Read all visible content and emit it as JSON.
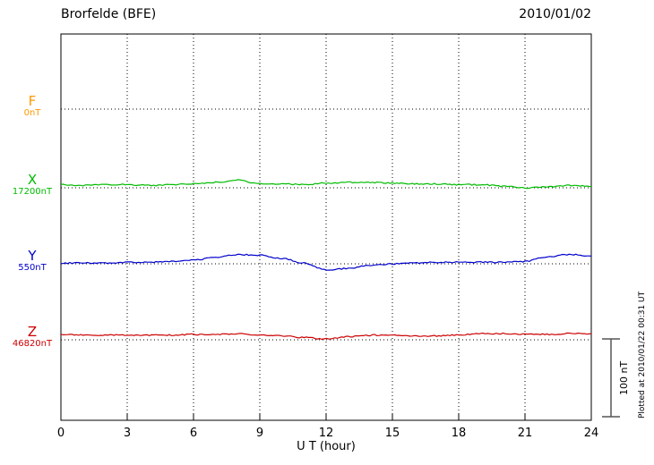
{
  "header": {
    "title": "Brorfelde (BFE)",
    "date": "2010/01/02"
  },
  "footer": {
    "plotted_note": "Plotted at 2010/01/22 00:31 UT"
  },
  "chart_data": {
    "type": "line",
    "title": "Brorfelde (BFE)",
    "date": "2010/01/02",
    "xlabel": "U T (hour)",
    "xlim": [
      0,
      24
    ],
    "x_ticks": [
      0,
      3,
      6,
      9,
      12,
      15,
      18,
      21,
      24
    ],
    "x_step_hours": 1,
    "x_unit": "hour",
    "y_unit": "nT",
    "grid": "dotted vertical lines every 3 h; dotted horizontal line at each channel baseline",
    "scale_bar": {
      "label": "100 nT",
      "nT": 100
    },
    "series": [
      {
        "name": "F",
        "baseline_label": "0nT",
        "color": "#ff9900",
        "values_deviation_nT": []
      },
      {
        "name": "X",
        "baseline_label": "17200nT",
        "color": "#00bb00",
        "values_deviation_nT": [
          4,
          3,
          4,
          4,
          3,
          4,
          5,
          7,
          10,
          5,
          5,
          4,
          6,
          7,
          7,
          6,
          5,
          5,
          4,
          4,
          2,
          0,
          1,
          3,
          2
        ]
      },
      {
        "name": "Y",
        "baseline_label": "550nT",
        "color": "#0000cc",
        "values_deviation_nT": [
          1,
          1,
          1,
          2,
          2,
          3,
          5,
          8,
          12,
          11,
          7,
          1,
          -8,
          -6,
          -2,
          0,
          1,
          2,
          2,
          2,
          2,
          3,
          9,
          12,
          10
        ]
      },
      {
        "name": "Z",
        "baseline_label": "46820nT",
        "color": "#cc0000",
        "values_deviation_nT": [
          7,
          6,
          6,
          6,
          6,
          6,
          7,
          7,
          8,
          6,
          5,
          3,
          1,
          4,
          6,
          6,
          5,
          5,
          6,
          8,
          8,
          7,
          7,
          8,
          8
        ]
      }
    ]
  }
}
